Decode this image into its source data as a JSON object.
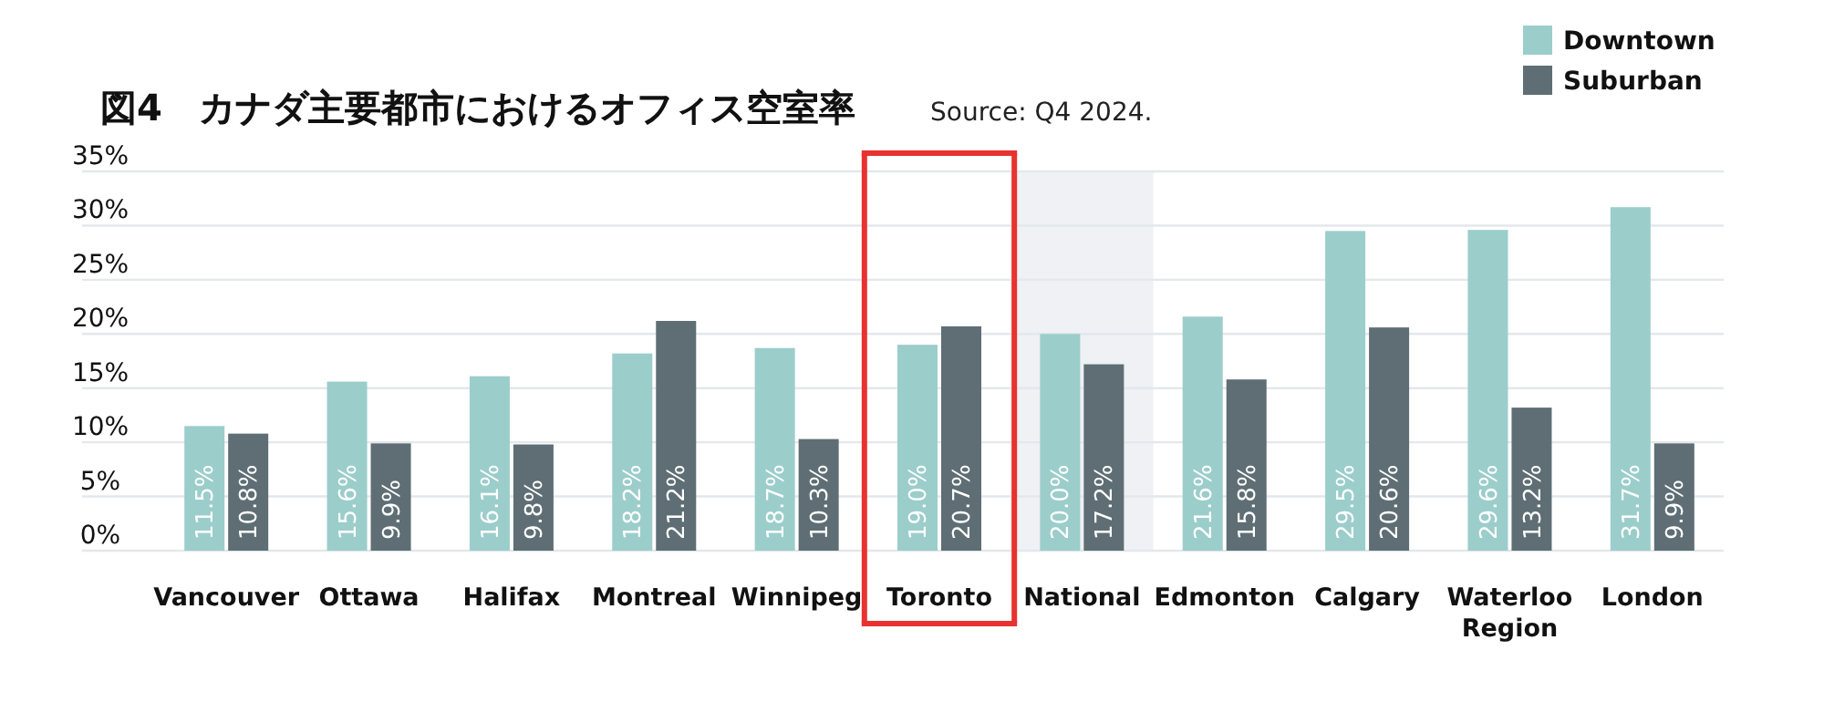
{
  "chart_data": {
    "type": "bar",
    "title": "図4　カナダ主要都市におけるオフィス空室率",
    "subtitle": "Source: Q4 2024.",
    "categories": [
      "Vancouver",
      "Ottawa",
      "Halifax",
      "Montreal",
      "Winnipeg",
      "Toronto",
      "National",
      "Edmonton",
      "Calgary",
      "Waterloo Region",
      "London"
    ],
    "series": [
      {
        "name": "Downtown",
        "color": "#9bcdcb",
        "values": [
          11.5,
          15.6,
          16.1,
          18.2,
          18.7,
          19.0,
          20.0,
          21.6,
          29.5,
          29.6,
          31.7
        ],
        "value_labels": [
          "11.5%",
          "15.6%",
          "16.1%",
          "18.2%",
          "18.7%",
          "19.0%",
          "20.0%",
          "21.6%",
          "29.5%",
          "29.6%",
          "31.7%"
        ]
      },
      {
        "name": "Suburban",
        "color": "#5e6e74",
        "values": [
          10.8,
          9.9,
          9.8,
          21.2,
          10.3,
          20.7,
          17.2,
          15.8,
          20.6,
          13.2,
          9.9
        ],
        "value_labels": [
          "10.8%",
          "9.9%",
          "9.8%",
          "21.2%",
          "10.3%",
          "20.7%",
          "17.2%",
          "15.8%",
          "20.6%",
          "13.2%",
          "9.9%"
        ]
      }
    ],
    "ylim": [
      0,
      35
    ],
    "yticks": [
      {
        "value": 0,
        "label": "0%"
      },
      {
        "value": 5,
        "label": "5%"
      },
      {
        "value": 10,
        "label": "10%"
      },
      {
        "value": 15,
        "label": "15%"
      },
      {
        "value": 20,
        "label": "20%"
      },
      {
        "value": 25,
        "label": "25%"
      },
      {
        "value": 30,
        "label": "30%"
      },
      {
        "value": 35,
        "label": "35%"
      }
    ],
    "grid": "y",
    "legend": "top right",
    "bands": [
      {
        "axis": "x",
        "from": "National",
        "to": "National",
        "color": "#eff1f4"
      }
    ]
  }
}
